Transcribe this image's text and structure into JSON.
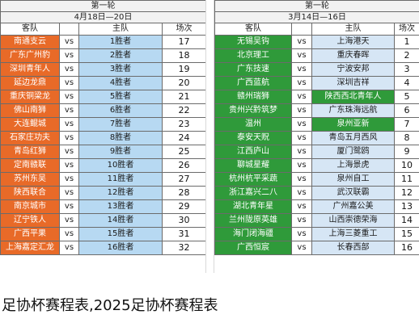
{
  "left": {
    "round_title": "第一轮",
    "date_range": "4月18日—20日",
    "headers": {
      "away": "客队",
      "home": "主队",
      "field": "场次"
    },
    "rows": [
      {
        "away": "南通支云",
        "vs": "vs",
        "home": "1胜者",
        "num": "17"
      },
      {
        "away": "广东广州豹",
        "vs": "vs",
        "home": "2胜者",
        "num": "18"
      },
      {
        "away": "深圳青年人",
        "vs": "vs",
        "home": "3胜者",
        "num": "19"
      },
      {
        "away": "延边龙鼎",
        "vs": "vs",
        "home": "4胜者",
        "num": "20"
      },
      {
        "away": "重庆铜梁龙",
        "vs": "vs",
        "home": "5胜者",
        "num": "21"
      },
      {
        "away": "佛山南狮",
        "vs": "vs",
        "home": "6胜者",
        "num": "22"
      },
      {
        "away": "大连鲲城",
        "vs": "vs",
        "home": "7胜者",
        "num": "23"
      },
      {
        "away": "石家庄功夫",
        "vs": "vs",
        "home": "8胜者",
        "num": "24"
      },
      {
        "away": "青岛红狮",
        "vs": "vs",
        "home": "9胜者",
        "num": "25"
      },
      {
        "away": "定南赣联",
        "vs": "vs",
        "home": "10胜者",
        "num": "26"
      },
      {
        "away": "苏州东吴",
        "vs": "vs",
        "home": "11胜者",
        "num": "27"
      },
      {
        "away": "陕西联合",
        "vs": "vs",
        "home": "12胜者",
        "num": "28"
      },
      {
        "away": "南京城市",
        "vs": "vs",
        "home": "13胜者",
        "num": "29"
      },
      {
        "away": "辽宁铁人",
        "vs": "vs",
        "home": "14胜者",
        "num": "30"
      },
      {
        "away": "广西平果",
        "vs": "vs",
        "home": "15胜者",
        "num": "31"
      },
      {
        "away": "上海嘉定汇龙",
        "vs": "vs",
        "home": "16胜者",
        "num": "32"
      }
    ]
  },
  "right": {
    "round_title": "第一轮",
    "date_range": "3月14日—16日",
    "headers": {
      "away": "客队",
      "home": "主队",
      "field": "场次"
    },
    "rows": [
      {
        "away": "无锡吴钩",
        "vs": "vs",
        "home": "上海港天",
        "num": "1"
      },
      {
        "away": "北京理工",
        "vs": "vs",
        "home": "重庆春晖",
        "num": "2"
      },
      {
        "away": "广东技速",
        "vs": "vs",
        "home": "宁波安邦",
        "num": "3"
      },
      {
        "away": "广西蓝航",
        "vs": "vs",
        "home": "深圳吉祥",
        "num": "4"
      },
      {
        "away": "赣州瑞狮",
        "vs": "vs",
        "home": "陕西西北青年人",
        "num": "5"
      },
      {
        "away": "贵州兴黔筑梦",
        "vs": "vs",
        "home": "广东珠海远航",
        "num": "6"
      },
      {
        "away": "温州",
        "vs": "vs",
        "home": "泉州亚新",
        "num": "7"
      },
      {
        "away": "泰安天贶",
        "vs": "vs",
        "home": "青岛五月西风",
        "num": "8"
      },
      {
        "away": "江西庐山",
        "vs": "vs",
        "home": "厦门鹭鸥",
        "num": "9"
      },
      {
        "away": "聊城星耀",
        "vs": "vs",
        "home": "上海景虎",
        "num": "10"
      },
      {
        "away": "杭州杭平采蔬",
        "vs": "vs",
        "home": "泉州自工",
        "num": "11"
      },
      {
        "away": "浙江嘉兴二八",
        "vs": "vs",
        "home": "武汉联霸",
        "num": "12"
      },
      {
        "away": "湖北青年星",
        "vs": "vs",
        "home": "广州嘉公美",
        "num": "13"
      },
      {
        "away": "兰州陇原英雄",
        "vs": "vs",
        "home": "山西崇德荣海",
        "num": "14"
      },
      {
        "away": "海门闭海疆",
        "vs": "vs",
        "home": "上海三菱重工",
        "num": "15"
      },
      {
        "away": "广西恒宸",
        "vs": "vs",
        "home": "长春西部",
        "num": "16"
      }
    ],
    "highlighted_home_rows": [
      4,
      6
    ]
  },
  "caption": "足协杯赛程表,2025足协杯赛程表"
}
